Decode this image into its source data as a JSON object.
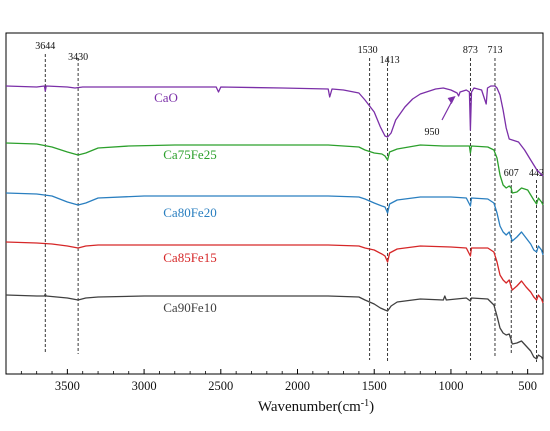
{
  "chart_data": {
    "type": "line",
    "title": "",
    "xlabel": "Wavenumber",
    "xlabel_unit": "(cm",
    "xlabel_sup": "-1",
    "xlabel_close": ")",
    "ylabel": "",
    "xlim": [
      3900,
      400
    ],
    "x_reversed": true,
    "x_ticks": [
      3500,
      3000,
      2500,
      2000,
      1500,
      1000,
      500
    ],
    "x_tick_labels": [
      "3500",
      "3000",
      "2500",
      "2000",
      "1500",
      "1000",
      "500"
    ],
    "y_ticks_shown": false,
    "grid": false,
    "legend": "none",
    "reference_lines": [
      {
        "x": 3644,
        "label": "3644"
      },
      {
        "x": 3430,
        "label": "3430"
      },
      {
        "x": 1530,
        "label": "1530"
      },
      {
        "x": 1413,
        "label": "1413"
      },
      {
        "x": 873,
        "label": "873"
      },
      {
        "x": 713,
        "label": "713"
      },
      {
        "x": 607,
        "label": "607"
      },
      {
        "x": 442,
        "label": "442"
      }
    ],
    "arrow_annotation": {
      "label": "950",
      "x": 950
    },
    "series": [
      {
        "name": "CaO",
        "color": "#7b2fa8",
        "points": [
          [
            3900,
            86
          ],
          [
            3700,
            87
          ],
          [
            3650,
            86
          ],
          [
            3644,
            91
          ],
          [
            3638,
            86
          ],
          [
            3500,
            87
          ],
          [
            3450,
            88
          ],
          [
            3400,
            87
          ],
          [
            3000,
            87
          ],
          [
            2530,
            87
          ],
          [
            2515,
            92
          ],
          [
            2500,
            87
          ],
          [
            2100,
            88
          ],
          [
            1800,
            89
          ],
          [
            1790,
            97
          ],
          [
            1775,
            89
          ],
          [
            1700,
            90
          ],
          [
            1600,
            93
          ],
          [
            1560,
            100
          ],
          [
            1500,
            112
          ],
          [
            1460,
            127
          ],
          [
            1430,
            136
          ],
          [
            1413,
            137
          ],
          [
            1390,
            133
          ],
          [
            1360,
            120
          ],
          [
            1300,
            107
          ],
          [
            1250,
            99
          ],
          [
            1200,
            94
          ],
          [
            1100,
            89
          ],
          [
            1050,
            88
          ],
          [
            1000,
            90
          ],
          [
            960,
            93
          ],
          [
            950,
            96
          ],
          [
            940,
            92
          ],
          [
            900,
            90
          ],
          [
            880,
            92
          ],
          [
            873,
            130
          ],
          [
            866,
            92
          ],
          [
            850,
            88
          ],
          [
            800,
            90
          ],
          [
            770,
            104
          ],
          [
            762,
            88
          ],
          [
            740,
            86
          ],
          [
            713,
            86
          ],
          [
            700,
            88
          ],
          [
            680,
            95
          ],
          [
            660,
            110
          ],
          [
            640,
            128
          ],
          [
            620,
            139
          ],
          [
            600,
            140
          ],
          [
            560,
            142
          ],
          [
            520,
            150
          ],
          [
            480,
            160
          ],
          [
            440,
            170
          ],
          [
            400,
            176
          ]
        ],
        "label_text": "CaO"
      },
      {
        "name": "Ca75Fe25",
        "color": "#2ca02c",
        "points": [
          [
            3900,
            143
          ],
          [
            3700,
            144
          ],
          [
            3600,
            147
          ],
          [
            3500,
            152
          ],
          [
            3430,
            155
          ],
          [
            3380,
            153
          ],
          [
            3300,
            148
          ],
          [
            3100,
            146
          ],
          [
            2800,
            145
          ],
          [
            2300,
            145
          ],
          [
            2000,
            145
          ],
          [
            1800,
            145
          ],
          [
            1700,
            146
          ],
          [
            1600,
            147
          ],
          [
            1560,
            150
          ],
          [
            1500,
            153
          ],
          [
            1450,
            154
          ],
          [
            1430,
            156
          ],
          [
            1413,
            160
          ],
          [
            1400,
            152
          ],
          [
            1350,
            149
          ],
          [
            1200,
            145
          ],
          [
            1050,
            146
          ],
          [
            950,
            146
          ],
          [
            880,
            146
          ],
          [
            873,
            153
          ],
          [
            866,
            146
          ],
          [
            760,
            147
          ],
          [
            720,
            150
          ],
          [
            700,
            158
          ],
          [
            680,
            175
          ],
          [
            660,
            185
          ],
          [
            640,
            188
          ],
          [
            620,
            186
          ],
          [
            607,
            188
          ],
          [
            600,
            193
          ],
          [
            570,
            192
          ],
          [
            540,
            188
          ],
          [
            500,
            190
          ],
          [
            460,
            200
          ],
          [
            442,
            204
          ],
          [
            430,
            198
          ],
          [
            410,
            202
          ],
          [
            400,
            205
          ]
        ],
        "label_text": "Ca75Fe25"
      },
      {
        "name": "Ca80Fe20",
        "color": "#2a7fc0",
        "points": [
          [
            3900,
            193
          ],
          [
            3700,
            194
          ],
          [
            3600,
            196
          ],
          [
            3500,
            202
          ],
          [
            3430,
            205
          ],
          [
            3380,
            203
          ],
          [
            3300,
            198
          ],
          [
            3000,
            196
          ],
          [
            2500,
            196
          ],
          [
            2000,
            196
          ],
          [
            1800,
            196
          ],
          [
            1600,
            197
          ],
          [
            1560,
            199
          ],
          [
            1500,
            203
          ],
          [
            1450,
            206
          ],
          [
            1430,
            207
          ],
          [
            1413,
            213
          ],
          [
            1400,
            204
          ],
          [
            1350,
            200
          ],
          [
            1200,
            197
          ],
          [
            1000,
            197
          ],
          [
            900,
            198
          ],
          [
            873,
            206
          ],
          [
            866,
            198
          ],
          [
            760,
            199
          ],
          [
            720,
            203
          ],
          [
            700,
            213
          ],
          [
            680,
            226
          ],
          [
            660,
            232
          ],
          [
            640,
            235
          ],
          [
            620,
            232
          ],
          [
            607,
            238
          ],
          [
            600,
            241
          ],
          [
            570,
            237
          ],
          [
            540,
            232
          ],
          [
            510,
            238
          ],
          [
            480,
            244
          ],
          [
            460,
            250
          ],
          [
            442,
            252
          ],
          [
            430,
            246
          ],
          [
            410,
            250
          ],
          [
            400,
            255
          ]
        ],
        "label_text": "Ca80Fe20"
      },
      {
        "name": "Ca85Fe15",
        "color": "#d62728",
        "points": [
          [
            3900,
            242
          ],
          [
            3700,
            243
          ],
          [
            3600,
            244
          ],
          [
            3500,
            246
          ],
          [
            3430,
            248
          ],
          [
            3380,
            246
          ],
          [
            3300,
            245
          ],
          [
            3000,
            245
          ],
          [
            2500,
            245
          ],
          [
            2000,
            245
          ],
          [
            1800,
            245
          ],
          [
            1600,
            246
          ],
          [
            1560,
            248
          ],
          [
            1500,
            250
          ],
          [
            1450,
            254
          ],
          [
            1430,
            256
          ],
          [
            1413,
            262
          ],
          [
            1400,
            253
          ],
          [
            1350,
            249
          ],
          [
            1200,
            246
          ],
          [
            1000,
            247
          ],
          [
            900,
            248
          ],
          [
            873,
            256
          ],
          [
            866,
            248
          ],
          [
            760,
            248
          ],
          [
            720,
            252
          ],
          [
            700,
            262
          ],
          [
            680,
            275
          ],
          [
            660,
            280
          ],
          [
            640,
            283
          ],
          [
            620,
            280
          ],
          [
            607,
            287
          ],
          [
            600,
            290
          ],
          [
            570,
            286
          ],
          [
            540,
            281
          ],
          [
            510,
            287
          ],
          [
            480,
            292
          ],
          [
            460,
            297
          ],
          [
            442,
            300
          ],
          [
            430,
            295
          ],
          [
            410,
            299
          ],
          [
            400,
            303
          ]
        ],
        "label_text": "Ca85Fe15"
      },
      {
        "name": "Ca90Fe10",
        "color": "#404040",
        "points": [
          [
            3900,
            295
          ],
          [
            3700,
            296
          ],
          [
            3650,
            296
          ],
          [
            3644,
            294
          ],
          [
            3638,
            296
          ],
          [
            3500,
            298
          ],
          [
            3430,
            300
          ],
          [
            3380,
            298
          ],
          [
            3300,
            297
          ],
          [
            3000,
            296
          ],
          [
            2500,
            296
          ],
          [
            2000,
            296
          ],
          [
            1800,
            296
          ],
          [
            1600,
            297
          ],
          [
            1560,
            300
          ],
          [
            1500,
            304
          ],
          [
            1460,
            308
          ],
          [
            1430,
            310
          ],
          [
            1413,
            311
          ],
          [
            1390,
            306
          ],
          [
            1350,
            302
          ],
          [
            1200,
            299
          ],
          [
            1050,
            300
          ],
          [
            1040,
            296
          ],
          [
            1030,
            300
          ],
          [
            900,
            298
          ],
          [
            873,
            301
          ],
          [
            866,
            298
          ],
          [
            760,
            299
          ],
          [
            720,
            305
          ],
          [
            700,
            316
          ],
          [
            680,
            328
          ],
          [
            660,
            333
          ],
          [
            640,
            335
          ],
          [
            620,
            334
          ],
          [
            607,
            340
          ],
          [
            600,
            344
          ],
          [
            570,
            343
          ],
          [
            540,
            341
          ],
          [
            510,
            346
          ],
          [
            480,
            351
          ],
          [
            460,
            357
          ],
          [
            442,
            359
          ],
          [
            430,
            355
          ],
          [
            410,
            357
          ],
          [
            400,
            360
          ]
        ],
        "label_text": "Ca90Fe10"
      }
    ]
  }
}
